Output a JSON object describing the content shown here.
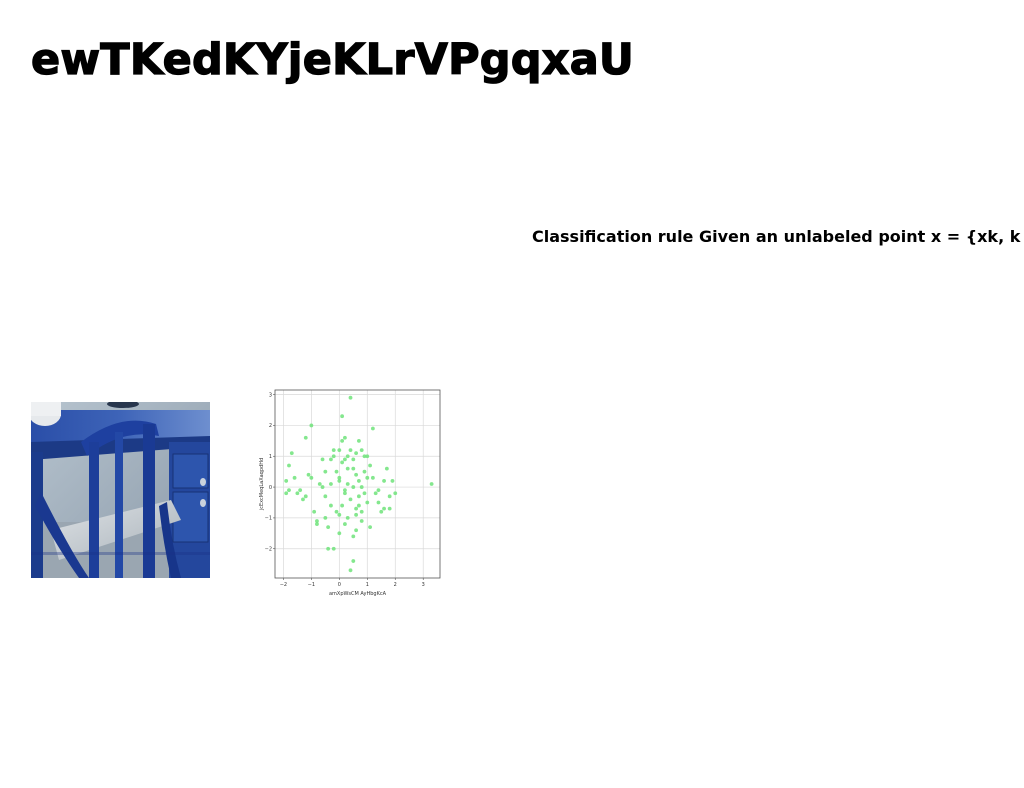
{
  "page": {
    "title": "ewTKedKYjeKLrVPgqxaU",
    "rule_text": "Classification rule Given an unlabeled point x = {xk, k"
  },
  "photo": {
    "subject": "blue desk with chair"
  },
  "colors": {
    "point": "#6fe37a",
    "desk_blue": "#1f3e94",
    "grid": "#d9d9d9"
  },
  "chart_data": {
    "type": "scatter",
    "xlabel": "amXpWsCM AyHbgKcA",
    "ylabel": "jcExcMeqLaXaqpdHd",
    "xlim": [
      -2.3,
      3.6
    ],
    "ylim": [
      -2.95,
      3.15
    ],
    "xticks": [
      -2,
      -1,
      0,
      1,
      2,
      3
    ],
    "yticks": [
      -2,
      -1,
      0,
      1,
      2,
      3
    ],
    "xtick_labels": [
      "−2",
      "−1",
      "0",
      "1",
      "2",
      "3"
    ],
    "ytick_labels": [
      "−2",
      "−1",
      "0",
      "1",
      "2",
      "3"
    ],
    "grid": true,
    "points": [
      [
        -1.8,
        0.7
      ],
      [
        -1.7,
        1.1
      ],
      [
        -1.9,
        0.2
      ],
      [
        -1.8,
        -0.1
      ],
      [
        -1.6,
        0.3
      ],
      [
        -1.5,
        -0.2
      ],
      [
        -1.2,
        1.6
      ],
      [
        -1.0,
        2.0
      ],
      [
        -1.1,
        0.4
      ],
      [
        -1.0,
        0.3
      ],
      [
        -0.9,
        -0.8
      ],
      [
        -0.8,
        -1.1
      ],
      [
        -1.3,
        -0.4
      ],
      [
        -1.4,
        -0.1
      ],
      [
        -0.6,
        0.0
      ],
      [
        -0.6,
        0.9
      ],
      [
        -0.5,
        -0.3
      ],
      [
        -0.5,
        -1.0
      ],
      [
        -0.4,
        -1.3
      ],
      [
        -0.3,
        0.1
      ],
      [
        -0.3,
        -0.6
      ],
      [
        -0.2,
        -2.0
      ],
      [
        -0.2,
        1.0
      ],
      [
        -0.1,
        0.5
      ],
      [
        0.0,
        1.2
      ],
      [
        0.0,
        0.2
      ],
      [
        0.0,
        -0.9
      ],
      [
        0.0,
        -1.5
      ],
      [
        0.1,
        2.3
      ],
      [
        0.1,
        1.5
      ],
      [
        0.1,
        0.8
      ],
      [
        0.2,
        1.6
      ],
      [
        0.2,
        -0.2
      ],
      [
        0.2,
        -1.2
      ],
      [
        0.3,
        0.6
      ],
      [
        0.3,
        0.1
      ],
      [
        0.3,
        -1.0
      ],
      [
        0.4,
        1.2
      ],
      [
        0.4,
        -0.4
      ],
      [
        0.4,
        -2.7
      ],
      [
        0.4,
        2.9
      ],
      [
        0.5,
        0.9
      ],
      [
        0.5,
        0.0
      ],
      [
        0.5,
        -1.6
      ],
      [
        0.5,
        -2.4
      ],
      [
        0.6,
        0.4
      ],
      [
        0.6,
        -0.7
      ],
      [
        0.6,
        -1.4
      ],
      [
        0.7,
        1.5
      ],
      [
        0.7,
        0.2
      ],
      [
        0.7,
        -0.3
      ],
      [
        0.8,
        1.2
      ],
      [
        0.8,
        -0.8
      ],
      [
        0.8,
        -1.1
      ],
      [
        0.9,
        0.5
      ],
      [
        0.9,
        -0.2
      ],
      [
        1.0,
        1.0
      ],
      [
        1.0,
        -0.5
      ],
      [
        1.1,
        -1.3
      ],
      [
        1.2,
        1.9
      ],
      [
        1.2,
        0.3
      ],
      [
        1.3,
        -0.2
      ],
      [
        1.4,
        -0.5
      ],
      [
        1.5,
        -0.8
      ],
      [
        1.6,
        -0.7
      ],
      [
        1.6,
        0.2
      ],
      [
        1.7,
        0.6
      ],
      [
        1.8,
        -0.3
      ],
      [
        1.8,
        -0.7
      ],
      [
        2.0,
        -0.2
      ],
      [
        1.9,
        0.2
      ],
      [
        3.3,
        0.1
      ],
      [
        -0.2,
        1.2
      ],
      [
        -0.7,
        0.1
      ],
      [
        0.1,
        -0.6
      ],
      [
        -0.4,
        -2.0
      ],
      [
        0.6,
        1.1
      ],
      [
        0.9,
        1.0
      ],
      [
        -1.9,
        -0.2
      ],
      [
        -0.8,
        -1.2
      ],
      [
        0.2,
        0.9
      ],
      [
        0.0,
        0.3
      ],
      [
        1.1,
        0.7
      ],
      [
        0.3,
        1.0
      ],
      [
        -0.5,
        0.5
      ],
      [
        0.7,
        -0.6
      ],
      [
        -0.1,
        -0.8
      ],
      [
        0.5,
        0.6
      ],
      [
        1.0,
        0.3
      ],
      [
        0.2,
        -0.1
      ],
      [
        -0.3,
        0.9
      ],
      [
        1.4,
        -0.1
      ],
      [
        0.8,
        0.0
      ],
      [
        -1.2,
        -0.3
      ],
      [
        0.6,
        -0.9
      ]
    ]
  }
}
